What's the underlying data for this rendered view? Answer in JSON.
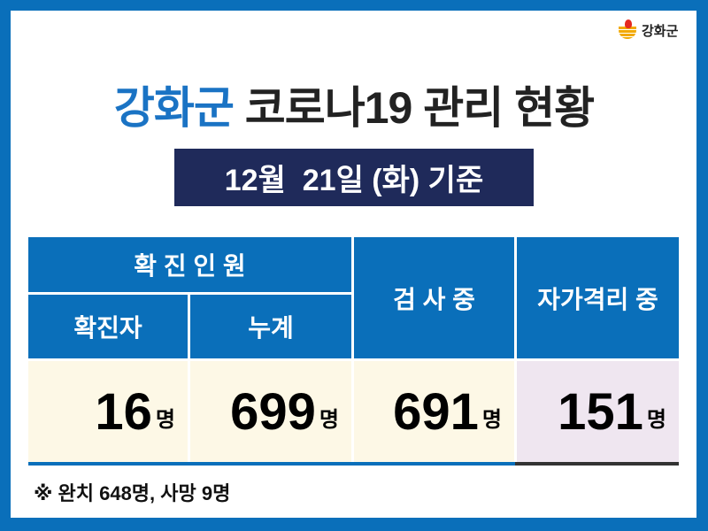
{
  "logo": {
    "text": "강화군"
  },
  "title": {
    "accent": "강화군",
    "rest": " 코로나19 관리 현황"
  },
  "date": "12월  21일 (화) 기준",
  "table": {
    "group_header": "확 진 인 원",
    "headers": [
      "확진자",
      "누계",
      "검 사 중",
      "자가격리 중"
    ],
    "values": [
      "16",
      "699",
      "691",
      "151"
    ],
    "unit": "명"
  },
  "note": "※ 완치 648명, 사망 9명",
  "colors": {
    "brand_blue": "#0a6fba",
    "title_blue": "#1a73c4",
    "navy": "#1f2a5a",
    "cream": "#fdf8e6",
    "lavender": "#efe6f0"
  }
}
